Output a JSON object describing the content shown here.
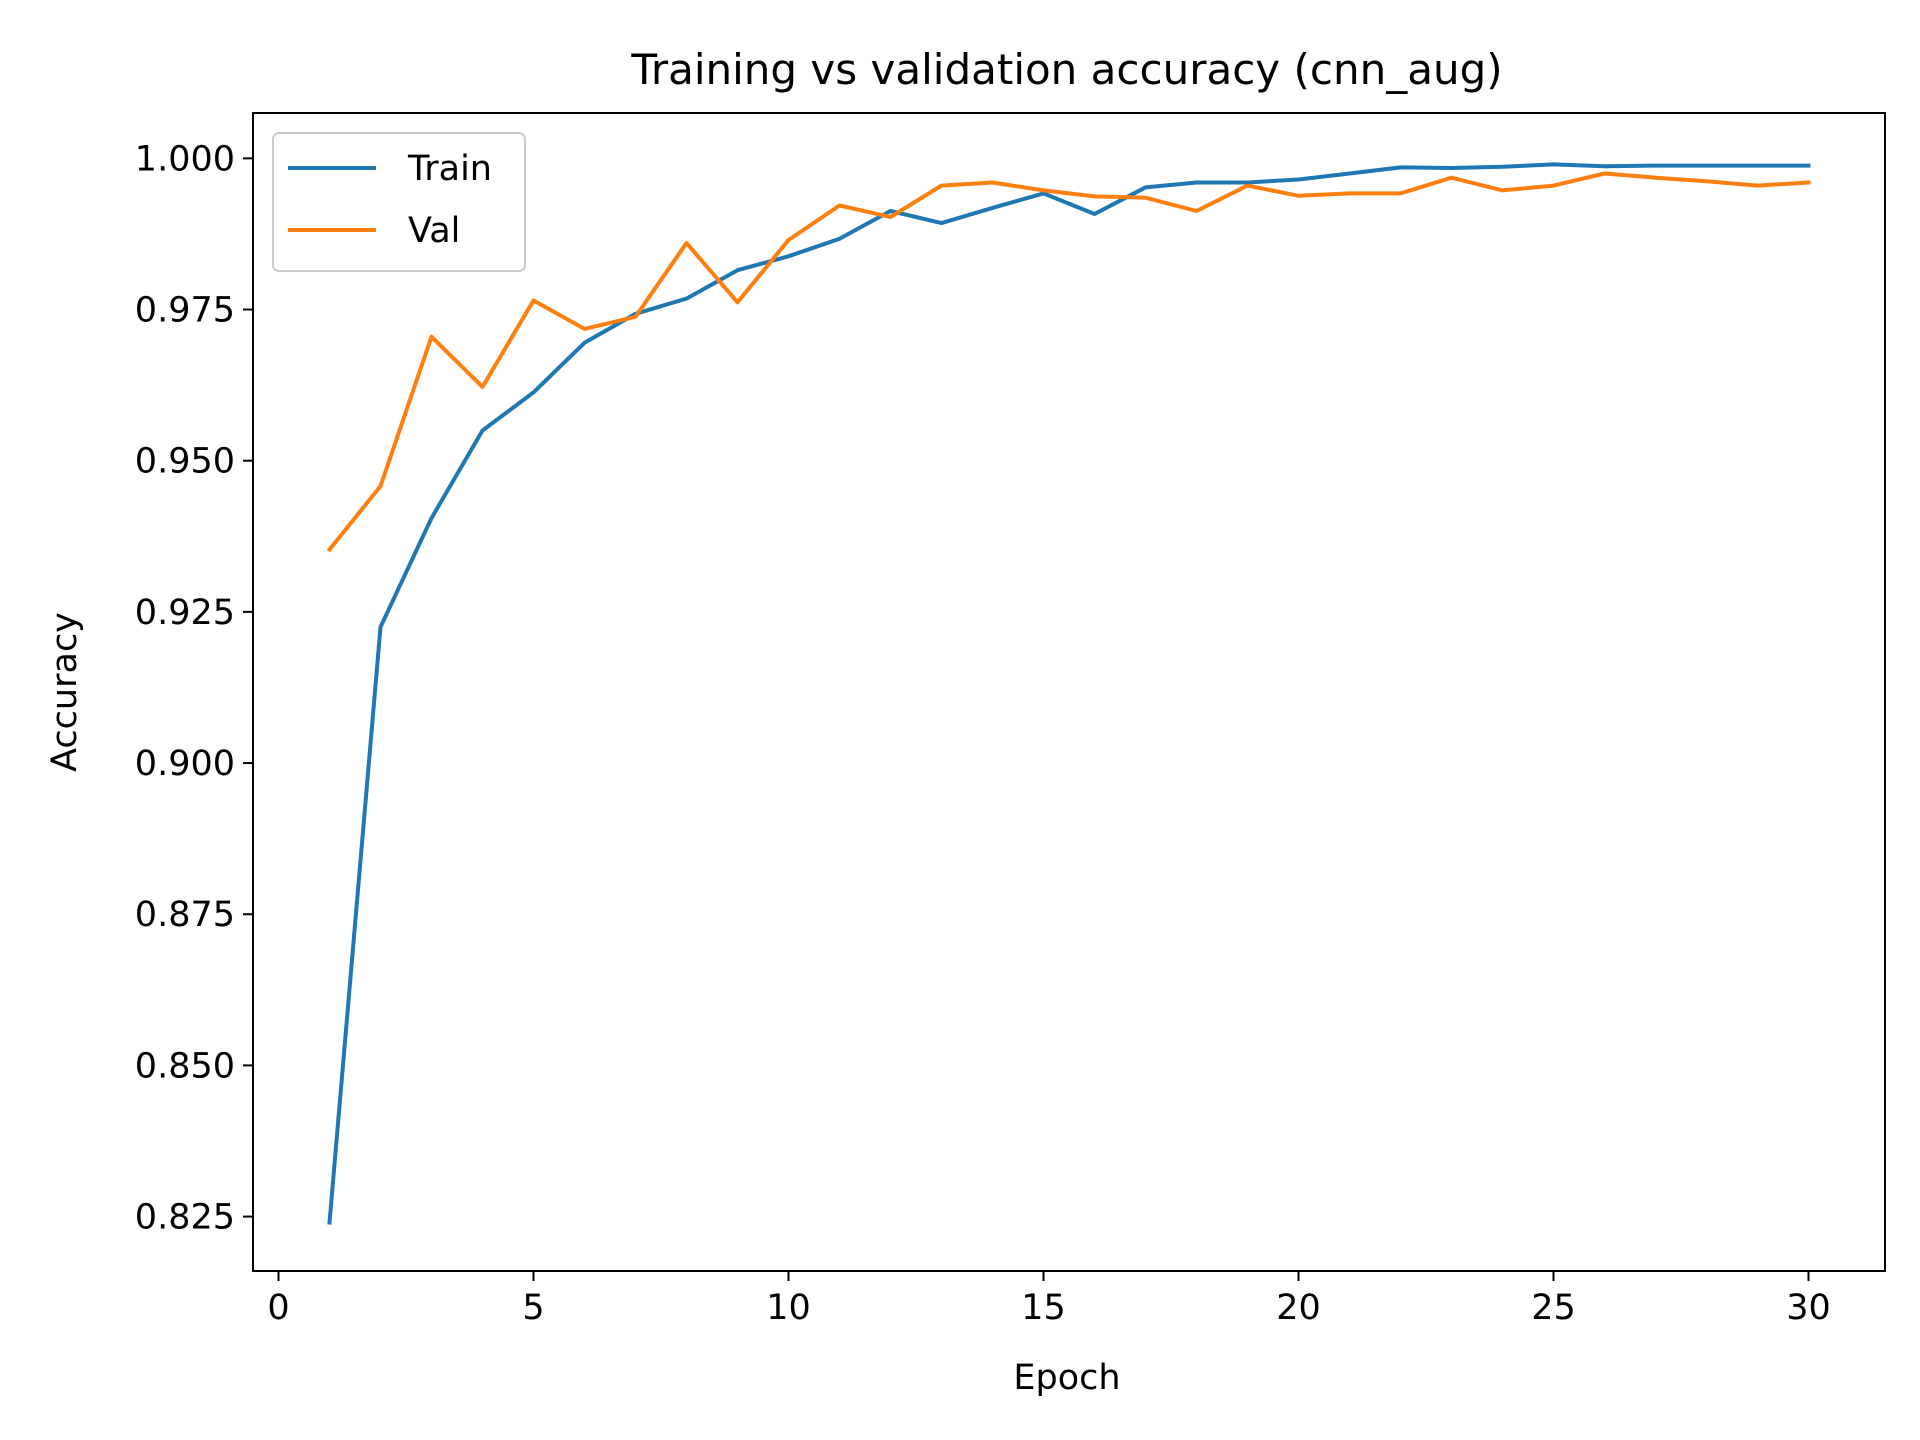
{
  "chart_data": {
    "type": "line",
    "title": "Training vs validation accuracy (cnn_aug)",
    "xlabel": "Epoch",
    "ylabel": "Accuracy",
    "xlim": [
      -0.5,
      31.5
    ],
    "ylim": [
      0.816,
      1.0075
    ],
    "xticks": [
      0,
      5,
      10,
      15,
      20,
      25,
      30
    ],
    "xtick_labels": [
      "0",
      "5",
      "10",
      "15",
      "20",
      "25",
      "30"
    ],
    "yticks": [
      0.825,
      0.85,
      0.875,
      0.9,
      0.925,
      0.95,
      0.975,
      1.0
    ],
    "ytick_labels": [
      "0.825",
      "0.850",
      "0.875",
      "0.900",
      "0.925",
      "0.950",
      "0.975",
      "1.000"
    ],
    "grid": false,
    "legend_position": "top-left",
    "x": [
      1,
      2,
      3,
      4,
      5,
      6,
      7,
      8,
      9,
      10,
      11,
      12,
      13,
      14,
      15,
      16,
      17,
      18,
      19,
      20,
      21,
      22,
      23,
      24,
      25,
      26,
      27,
      28,
      29,
      30
    ],
    "series": [
      {
        "name": "Train",
        "color": "#1f77b4",
        "values": [
          0.824,
          0.9225,
          0.9405,
          0.955,
          0.9613,
          0.9695,
          0.9743,
          0.9768,
          0.9815,
          0.9838,
          0.9867,
          0.9913,
          0.9893,
          0.9918,
          0.9942,
          0.9908,
          0.9952,
          0.996,
          0.996,
          0.9965,
          0.9975,
          0.9985,
          0.9984,
          0.9986,
          0.999,
          0.9987,
          0.9988,
          0.9988,
          0.9988,
          0.9988
        ]
      },
      {
        "name": "Val",
        "color": "#ff7f0e",
        "values": [
          0.9353,
          0.9458,
          0.9705,
          0.9622,
          0.9765,
          0.9718,
          0.9738,
          0.986,
          0.9762,
          0.9865,
          0.9922,
          0.9903,
          0.9955,
          0.996,
          0.9947,
          0.9937,
          0.9935,
          0.9913,
          0.9955,
          0.9938,
          0.9942,
          0.9942,
          0.9968,
          0.9947,
          0.9955,
          0.9975,
          0.9968,
          0.9962,
          0.9955,
          0.996
        ]
      }
    ]
  }
}
